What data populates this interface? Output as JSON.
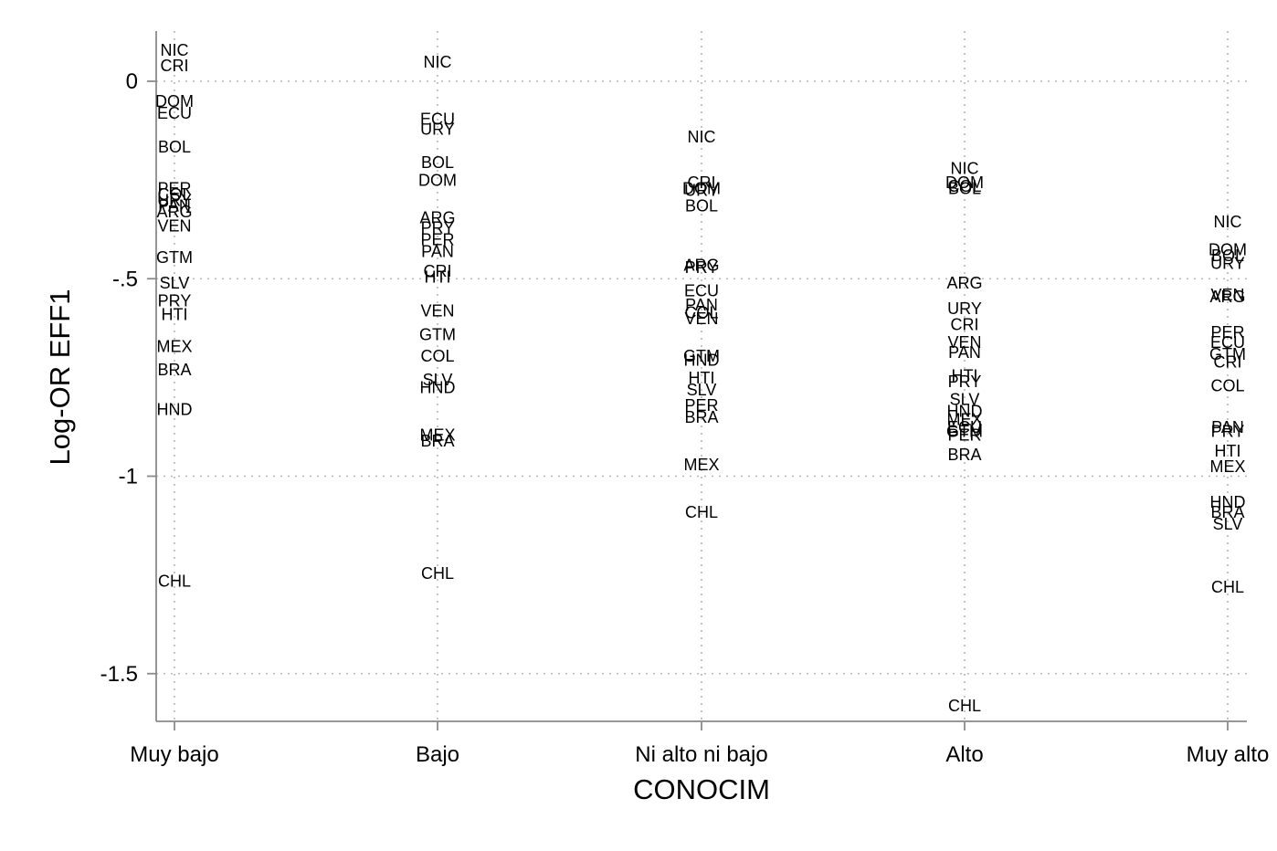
{
  "chart_data": {
    "type": "scatter",
    "xlabel": "CONOCIM",
    "ylabel": "Log-OR EFF1",
    "categories": [
      "Muy bajo",
      "Bajo",
      "Ni alto ni bajo",
      "Alto",
      "Muy alto"
    ],
    "yticks": [
      0,
      -0.5,
      -1,
      -1.5
    ],
    "ytick_labels": [
      "0",
      "-.5",
      "-1",
      "-1.5"
    ],
    "ylim": [
      -1.62,
      0.12
    ],
    "grid": true,
    "marker": "label",
    "series": [
      {
        "category": "Muy bajo",
        "points": [
          {
            "label": "NIC",
            "y": 0.08
          },
          {
            "label": "CRI",
            "y": 0.04
          },
          {
            "label": "DOM",
            "y": -0.05
          },
          {
            "label": "ECU",
            "y": -0.08
          },
          {
            "label": "BOL",
            "y": -0.165
          },
          {
            "label": "PER",
            "y": -0.27
          },
          {
            "label": "COL",
            "y": -0.285
          },
          {
            "label": "URY",
            "y": -0.3
          },
          {
            "label": "PAN",
            "y": -0.315
          },
          {
            "label": "ARG",
            "y": -0.33
          },
          {
            "label": "VEN",
            "y": -0.365
          },
          {
            "label": "GTM",
            "y": -0.445
          },
          {
            "label": "SLV",
            "y": -0.51
          },
          {
            "label": "PRY",
            "y": -0.555
          },
          {
            "label": "HTI",
            "y": -0.59
          },
          {
            "label": "MEX",
            "y": -0.67
          },
          {
            "label": "BRA",
            "y": -0.73
          },
          {
            "label": "HND",
            "y": -0.83
          },
          {
            "label": "CHL",
            "y": -1.265
          }
        ]
      },
      {
        "category": "Bajo",
        "points": [
          {
            "label": "NIC",
            "y": 0.05
          },
          {
            "label": "ECU",
            "y": -0.095
          },
          {
            "label": "URY",
            "y": -0.12
          },
          {
            "label": "BOL",
            "y": -0.205
          },
          {
            "label": "DOM",
            "y": -0.25
          },
          {
            "label": "ARG",
            "y": -0.345
          },
          {
            "label": "PRY",
            "y": -0.37
          },
          {
            "label": "PER",
            "y": -0.4
          },
          {
            "label": "PAN",
            "y": -0.43
          },
          {
            "label": "CRI",
            "y": -0.48
          },
          {
            "label": "HTI",
            "y": -0.495
          },
          {
            "label": "VEN",
            "y": -0.58
          },
          {
            "label": "GTM",
            "y": -0.64
          },
          {
            "label": "COL",
            "y": -0.695
          },
          {
            "label": "SLV",
            "y": -0.755
          },
          {
            "label": "HND",
            "y": -0.775
          },
          {
            "label": "MEX",
            "y": -0.895
          },
          {
            "label": "BRA",
            "y": -0.91
          },
          {
            "label": "CHL",
            "y": -1.245
          }
        ]
      },
      {
        "category": "Ni alto ni bajo",
        "points": [
          {
            "label": "NIC",
            "y": -0.14
          },
          {
            "label": "CRI",
            "y": -0.255
          },
          {
            "label": "DOM",
            "y": -0.27
          },
          {
            "label": "URY",
            "y": -0.275
          },
          {
            "label": "BOL",
            "y": -0.315
          },
          {
            "label": "ARG",
            "y": -0.465
          },
          {
            "label": "PRY",
            "y": -0.47
          },
          {
            "label": "ECU",
            "y": -0.53
          },
          {
            "label": "PAN",
            "y": -0.565
          },
          {
            "label": "COL",
            "y": -0.585
          },
          {
            "label": "VEN",
            "y": -0.6
          },
          {
            "label": "GTM",
            "y": -0.695
          },
          {
            "label": "HND",
            "y": -0.705
          },
          {
            "label": "HTI",
            "y": -0.75
          },
          {
            "label": "SLV",
            "y": -0.78
          },
          {
            "label": "PER",
            "y": -0.82
          },
          {
            "label": "BRA",
            "y": -0.85
          },
          {
            "label": "MEX",
            "y": -0.97
          },
          {
            "label": "CHL",
            "y": -1.09
          }
        ]
      },
      {
        "category": "Alto",
        "points": [
          {
            "label": "NIC",
            "y": -0.22
          },
          {
            "label": "DOM",
            "y": -0.255
          },
          {
            "label": "COL",
            "y": -0.265
          },
          {
            "label": "BOL",
            "y": -0.27
          },
          {
            "label": "ARG",
            "y": -0.51
          },
          {
            "label": "URY",
            "y": -0.575
          },
          {
            "label": "CRI",
            "y": -0.615
          },
          {
            "label": "VEN",
            "y": -0.66
          },
          {
            "label": "PAN",
            "y": -0.685
          },
          {
            "label": "HTI",
            "y": -0.745
          },
          {
            "label": "PRY",
            "y": -0.76
          },
          {
            "label": "SLV",
            "y": -0.805
          },
          {
            "label": "HND",
            "y": -0.835
          },
          {
            "label": "MEX",
            "y": -0.855
          },
          {
            "label": "ECU",
            "y": -0.875
          },
          {
            "label": "GTM",
            "y": -0.885
          },
          {
            "label": "PER",
            "y": -0.895
          },
          {
            "label": "BRA",
            "y": -0.945
          },
          {
            "label": "CHL",
            "y": -1.58
          }
        ]
      },
      {
        "category": "Muy alto",
        "points": [
          {
            "label": "NIC",
            "y": -0.355
          },
          {
            "label": "DOM",
            "y": -0.425
          },
          {
            "label": "BOL",
            "y": -0.44
          },
          {
            "label": "URY",
            "y": -0.46
          },
          {
            "label": "VEN",
            "y": -0.54
          },
          {
            "label": "ARG",
            "y": -0.545
          },
          {
            "label": "PER",
            "y": -0.635
          },
          {
            "label": "ECU",
            "y": -0.66
          },
          {
            "label": "GTM",
            "y": -0.69
          },
          {
            "label": "CRI",
            "y": -0.71
          },
          {
            "label": "COL",
            "y": -0.77
          },
          {
            "label": "PAN",
            "y": -0.875
          },
          {
            "label": "PRY",
            "y": -0.885
          },
          {
            "label": "HTI",
            "y": -0.935
          },
          {
            "label": "MEX",
            "y": -0.975
          },
          {
            "label": "HND",
            "y": -1.065
          },
          {
            "label": "BRA",
            "y": -1.09
          },
          {
            "label": "SLV",
            "y": -1.12
          },
          {
            "label": "CHL",
            "y": -1.28
          }
        ]
      }
    ]
  }
}
